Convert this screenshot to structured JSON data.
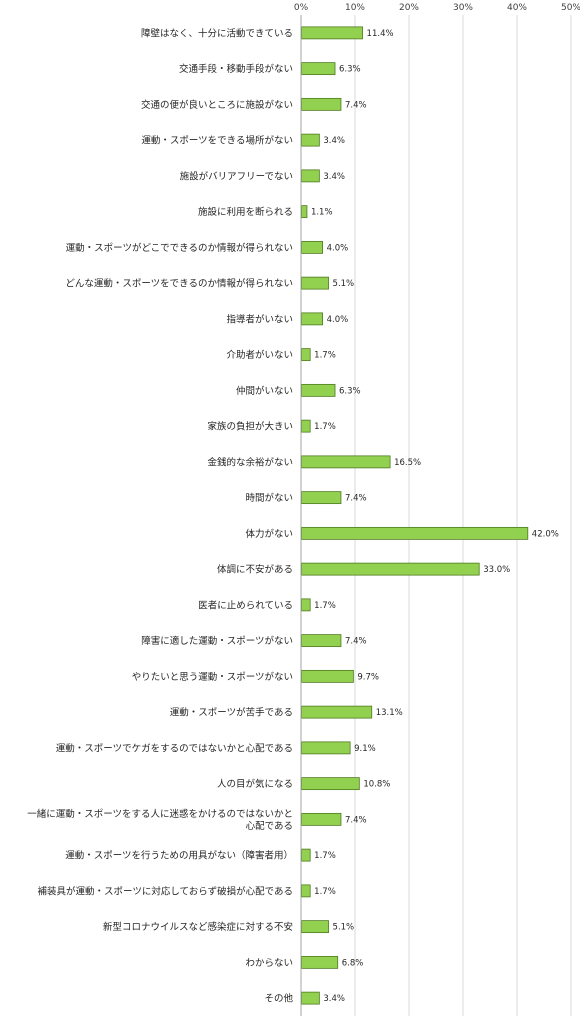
{
  "chart_data": {
    "type": "bar",
    "orientation": "horizontal",
    "categories": [
      "障壁はなく、十分に活動できている",
      "交通手段・移動手段がない",
      "交通の便が良いところに施設がない",
      "運動・スポーツをできる場所がない",
      "施設がバリアフリーでない",
      "施設に利用を断られる",
      "運動・スポーツがどこでできるのか情報が得られない",
      "どんな運動・スポーツをできるのか情報が得られない",
      "指導者がいない",
      "介助者がいない",
      "仲間がいない",
      "家族の負担が大きい",
      "金銭的な余裕がない",
      "時間がない",
      "体力がない",
      "体調に不安がある",
      "医者に止められている",
      "障害に適した運動・スポーツがない",
      "やりたいと思う運動・スポーツがない",
      "運動・スポーツが苦手である",
      "運動・スポーツでケガをするのではないかと心配である",
      "人の目が気になる",
      "一緒に運動・スポーツをする人に迷惑をかけるのではないかと心配である",
      "運動・スポーツを行うための用具がない（障害者用）",
      "補装具が運動・スポーツに対応しておらず破損が心配である",
      "新型コロナウイルスなど感染症に対する不安",
      "わからない",
      "その他"
    ],
    "category_lines": [
      [
        "障壁はなく、十分に活動できている"
      ],
      [
        "交通手段・移動手段がない"
      ],
      [
        "交通の便が良いところに施設がない"
      ],
      [
        "運動・スポーツをできる場所がない"
      ],
      [
        "施設がバリアフリーでない"
      ],
      [
        "施設に利用を断られる"
      ],
      [
        "運動・スポーツがどこでできるのか情報が得られない"
      ],
      [
        "どんな運動・スポーツをできるのか情報が得られない"
      ],
      [
        "指導者がいない"
      ],
      [
        "介助者がいない"
      ],
      [
        "仲間がいない"
      ],
      [
        "家族の負担が大きい"
      ],
      [
        "金銭的な余裕がない"
      ],
      [
        "時間がない"
      ],
      [
        "体力がない"
      ],
      [
        "体調に不安がある"
      ],
      [
        "医者に止められている"
      ],
      [
        "障害に適した運動・スポーツがない"
      ],
      [
        "やりたいと思う運動・スポーツがない"
      ],
      [
        "運動・スポーツが苦手である"
      ],
      [
        "運動・スポーツでケガをするのではないかと心配である"
      ],
      [
        "人の目が気になる"
      ],
      [
        "一緒に運動・スポーツをする人に迷惑をかけるのではないかと",
        "心配である"
      ],
      [
        "運動・スポーツを行うための用具がない（障害者用）"
      ],
      [
        "補装具が運動・スポーツに対応しておらず破損が心配である"
      ],
      [
        "新型コロナウイルスなど感染症に対する不安"
      ],
      [
        "わからない"
      ],
      [
        "その他"
      ]
    ],
    "values": [
      11.4,
      6.3,
      7.4,
      3.4,
      3.4,
      1.1,
      4.0,
      5.1,
      4.0,
      1.7,
      6.3,
      1.7,
      16.5,
      7.4,
      42.0,
      33.0,
      1.7,
      7.4,
      9.7,
      13.1,
      9.1,
      10.8,
      7.4,
      1.7,
      1.7,
      5.1,
      6.8,
      3.4
    ],
    "value_labels": [
      "11.4%",
      "6.3%",
      "7.4%",
      "3.4%",
      "3.4%",
      "1.1%",
      "4.0%",
      "5.1%",
      "4.0%",
      "1.7%",
      "6.3%",
      "1.7%",
      "16.5%",
      "7.4%",
      "42.0%",
      "33.0%",
      "1.7%",
      "7.4%",
      "9.7%",
      "13.1%",
      "9.1%",
      "10.8%",
      "7.4%",
      "1.7%",
      "1.7%",
      "5.1%",
      "6.8%",
      "3.4%"
    ],
    "xlim": [
      0,
      50
    ],
    "ticks": [
      0,
      10,
      20,
      30,
      40,
      50
    ],
    "tick_labels": [
      "0%",
      "10%",
      "20%",
      "30%",
      "40%",
      "50%"
    ],
    "tick_position": "top",
    "grid": true,
    "legend": "none",
    "title": "",
    "xlabel": "",
    "ylabel": "",
    "colors": {
      "bar_fill": "#92d050",
      "bar_stroke": "#4f7a1f",
      "grid": "#d9d9d9",
      "axis": "#a6a6a6"
    }
  }
}
